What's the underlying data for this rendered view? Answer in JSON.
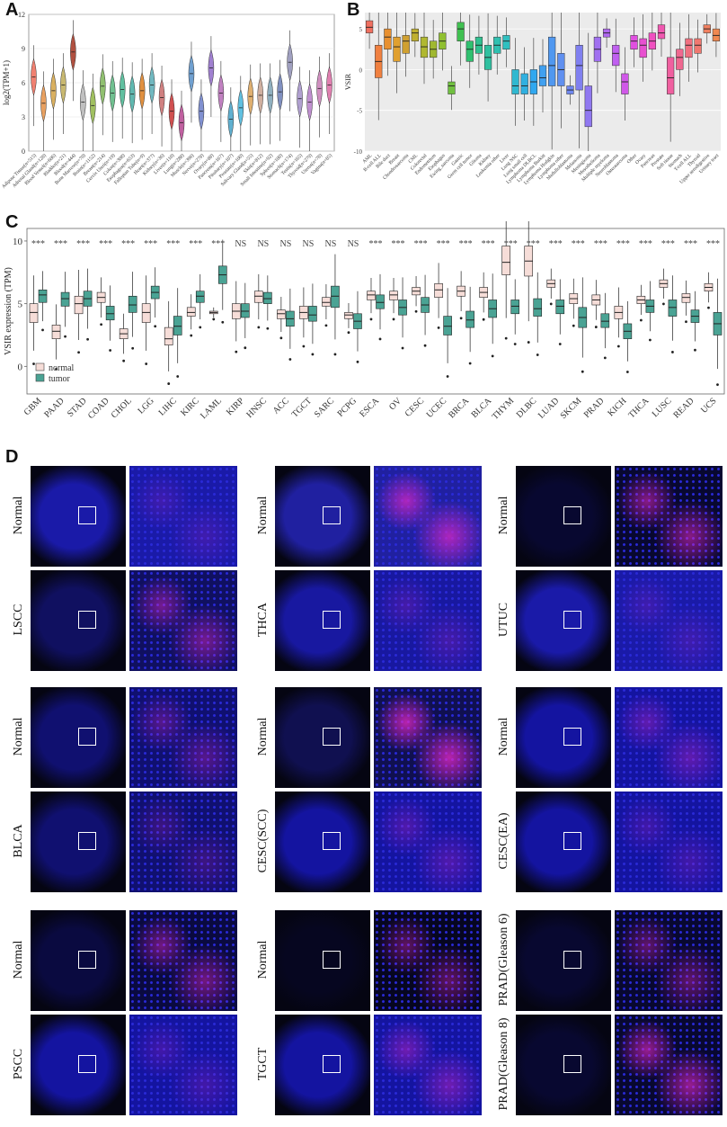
{
  "panels": {
    "a": "A",
    "b": "B",
    "c": "C",
    "d": "D"
  },
  "chart_a": {
    "type": "violin",
    "ylabel": "log2(TPM+1)",
    "ylim": [
      0,
      12
    ],
    "yticks": [
      0,
      3,
      6,
      9,
      12
    ],
    "categories": [
      "Adipose Tissue(n=515)",
      "Adrenal Gland(n=128)",
      "Blood Vessel(n=606)",
      "Bladder(n=21)",
      "Blood(n=444)",
      "Bone Marrow(n=70)",
      "Brain(n=1152)",
      "Breast(n=214)",
      "Cervix Uteri(n=19)",
      "Colon(n=308)",
      "Esophagus(n=653)",
      "Fallopian Tube(n=9)",
      "Heart(n=377)",
      "Kidney(n=36)",
      "Liver(n=110)",
      "Lung(n=288)",
      "Muscle(n=396)",
      "Nerve(n=278)",
      "Ovary(n=88)",
      "Pancreas(n=167)",
      "Pituitary(n=107)",
      "Prostate(n=100)",
      "Salivary Gland(n=55)",
      "Skin(n=812)",
      "Small Intestine(n=92)",
      "Spleen(n=100)",
      "Stomach(n=174)",
      "Testis(n=165)",
      "Thyroid(n=279)",
      "Uterus(n=78)",
      "Vagina(n=85)"
    ],
    "medians": [
      6.5,
      4.2,
      5.3,
      5.8,
      8.7,
      4.3,
      4.0,
      5.7,
      5.1,
      5.4,
      5.0,
      5.3,
      5.8,
      4.7,
      3.5,
      2.5,
      6.8,
      3.5,
      7.3,
      5.1,
      2.8,
      3.8,
      4.8,
      4.9,
      4.9,
      5.2,
      7.8,
      4.6,
      4.3,
      5.5,
      5.8
    ],
    "colors": [
      "#f08070",
      "#e8a060",
      "#d9b060",
      "#c8b870",
      "#b05040",
      "#c0c0c0",
      "#a0c060",
      "#90c070",
      "#70c090",
      "#60c0a0",
      "#60b8b0",
      "#e09040",
      "#70b8c0",
      "#d08080",
      "#d05050",
      "#c060a0",
      "#70a0d0",
      "#8090d0",
      "#a080d0",
      "#c080c0",
      "#60b0d0",
      "#60c0e0",
      "#e0b070",
      "#d0b0a0",
      "#90b0c0",
      "#8090c0",
      "#a0a0c0",
      "#b0a0d0",
      "#c090d0",
      "#d090c0",
      "#e080b0"
    ]
  },
  "chart_b": {
    "type": "box",
    "ylabel": "VSIR",
    "ylim": [
      -10,
      7
    ],
    "yticks": [
      -10,
      -5,
      0,
      5
    ],
    "categories": [
      "AML",
      "B-cell ALL",
      "Bile duct",
      "Breast",
      "Chondrosarcoma",
      "CML",
      "Colorectal",
      "Endometrium",
      "Esophagus",
      "Ewing_sarcoma",
      "Gastric",
      "Germ cell tumor",
      "Glioma",
      "Kidney",
      "Leukemia other",
      "Liver",
      "Lung NSC",
      "Lung small cell",
      "Lymphoma DLBCL",
      "Lymphoma Burkitt",
      "Lymphoma Hodgkin",
      "Lymphoma other",
      "Medulloblastoma",
      "Melanoma",
      "Meningioma",
      "Mesothelioma",
      "Multiple myeloma",
      "Neuroblastoma",
      "Osteosarcoma",
      "Other",
      "Ovary",
      "Pancreas",
      "Prostate",
      "Soft tissue",
      "Stomach",
      "T-cell ALL",
      "Thyroid",
      "Upper aerodigestive",
      "Urinary tract"
    ],
    "boxes": [
      [
        5.2,
        4.5,
        6.0
      ],
      [
        1.0,
        -1.0,
        3.0
      ],
      [
        4.0,
        2.5,
        5.0
      ],
      [
        2.8,
        1.0,
        4.0
      ],
      [
        3.5,
        2.0,
        4.2
      ],
      [
        4.5,
        3.5,
        5.0
      ],
      [
        2.8,
        1.5,
        4.0
      ],
      [
        2.5,
        1.5,
        3.5
      ],
      [
        3.5,
        2.5,
        4.5
      ],
      [
        -2.0,
        -3.0,
        -1.5
      ],
      [
        5.0,
        3.5,
        5.8
      ],
      [
        2.5,
        1.0,
        3.5
      ],
      [
        3.0,
        2.0,
        4.0
      ],
      [
        1.5,
        0.0,
        3.0
      ],
      [
        3.0,
        2.0,
        4.0
      ],
      [
        3.5,
        2.5,
        4.2
      ],
      [
        -2.0,
        -3.0,
        0.0
      ],
      [
        -2.0,
        -3.0,
        -0.5
      ],
      [
        -1.5,
        -3.0,
        0.0
      ],
      [
        -1.0,
        -2.0,
        0.5
      ],
      [
        0.5,
        -2.0,
        4.0
      ],
      [
        0.0,
        -2.0,
        2.0
      ],
      [
        -2.5,
        -3.0,
        -2.0
      ],
      [
        0.5,
        -2.5,
        3.0
      ],
      [
        -5.0,
        -7.0,
        -2.0
      ],
      [
        2.5,
        1.0,
        4.0
      ],
      [
        4.5,
        4.0,
        5.0
      ],
      [
        2.0,
        0.5,
        3.0
      ],
      [
        -1.5,
        -3.0,
        -0.5
      ],
      [
        3.5,
        2.5,
        4.2
      ],
      [
        3.0,
        1.5,
        3.8
      ],
      [
        3.5,
        2.5,
        4.5
      ],
      [
        4.5,
        3.8,
        5.5
      ],
      [
        -1.0,
        -3.0,
        1.5
      ],
      [
        1.5,
        0.0,
        2.5
      ],
      [
        3.0,
        1.5,
        3.8
      ],
      [
        3.0,
        2.0,
        3.8
      ],
      [
        5.0,
        4.5,
        5.5
      ],
      [
        4.2,
        3.5,
        5.0
      ]
    ],
    "colors": [
      "#f07060",
      "#f08040",
      "#e89030",
      "#e0a030",
      "#d0a030",
      "#c0b030",
      "#b0b830",
      "#a0b830",
      "#90c030",
      "#70c040",
      "#40c050",
      "#30c070",
      "#30c090",
      "#30c0a0",
      "#30c0b0",
      "#30c0c0",
      "#30b8d0",
      "#30b0e0",
      "#30a8f0",
      "#40a0f0",
      "#5098f0",
      "#6090f0",
      "#7088f0",
      "#8080f0",
      "#9078f0",
      "#a070f0",
      "#b068f0",
      "#c060f0",
      "#d058e8",
      "#e050e0",
      "#e850d0",
      "#f050c0",
      "#f058b0",
      "#f060a0",
      "#f06890",
      "#f07080",
      "#f07870",
      "#f08060",
      "#f08850"
    ]
  },
  "chart_c": {
    "type": "box",
    "ylabel": "VSIR expression (TPM)",
    "ylim": [
      -2.2,
      11
    ],
    "yticks": [
      0,
      5,
      10
    ],
    "legend": [
      "normal",
      "tumor"
    ],
    "legend_position": "bottom-left",
    "colors": {
      "normal": "#f6ddd8",
      "tumor": "#4aa394"
    },
    "categories": [
      "GBM",
      "PAAD",
      "STAD",
      "COAD",
      "CHOL",
      "LGG",
      "LIHC",
      "KIRC",
      "LAML",
      "KIRP",
      "HNSC",
      "ACC",
      "TGCT",
      "SARC",
      "PCPG",
      "ESCA",
      "OV",
      "CESC",
      "UCEC",
      "BRCA",
      "BLCA",
      "THYM",
      "DLBC",
      "LUAD",
      "SKCM",
      "PRAD",
      "KICH",
      "THCA",
      "LUSC",
      "READ",
      "UCS"
    ],
    "significance": [
      "***",
      "***",
      "***",
      "***",
      "***",
      "***",
      "***",
      "***",
      "***",
      "NS",
      "NS",
      "NS",
      "NS",
      "NS",
      "NS",
      "***",
      "***",
      "***",
      "***",
      "***",
      "***",
      "***",
      "***",
      "***",
      "***",
      "***",
      "***",
      "***",
      "***",
      "***",
      "***"
    ],
    "normal": [
      [
        4.3,
        3.5,
        5.0
      ],
      [
        2.8,
        2.2,
        3.3
      ],
      [
        5.0,
        4.2,
        5.6
      ],
      [
        5.5,
        5.1,
        5.9
      ],
      [
        2.6,
        2.2,
        3.0
      ],
      [
        4.3,
        3.5,
        5.0
      ],
      [
        2.2,
        1.7,
        3.1
      ],
      [
        4.3,
        4.0,
        4.7
      ],
      [
        4.3,
        4.2,
        4.4
      ],
      [
        4.4,
        3.8,
        5.0
      ],
      [
        5.6,
        5.1,
        6.0
      ],
      [
        4.2,
        3.8,
        4.5
      ],
      [
        4.3,
        3.8,
        4.8
      ],
      [
        5.1,
        4.8,
        5.5
      ],
      [
        4.1,
        3.8,
        4.3
      ],
      [
        5.7,
        5.3,
        6.0
      ],
      [
        5.7,
        5.3,
        6.0
      ],
      [
        6.0,
        5.7,
        6.3
      ],
      [
        6.1,
        5.5,
        6.6
      ],
      [
        6.0,
        5.6,
        6.4
      ],
      [
        5.9,
        5.5,
        6.3
      ],
      [
        8.3,
        7.3,
        9.6
      ],
      [
        8.4,
        7.2,
        9.6
      ],
      [
        6.6,
        6.3,
        6.9
      ],
      [
        5.4,
        5.0,
        5.8
      ],
      [
        5.3,
        4.9,
        5.7
      ],
      [
        4.3,
        3.8,
        4.8
      ],
      [
        5.3,
        5.0,
        5.6
      ],
      [
        6.6,
        6.3,
        6.9
      ],
      [
        5.5,
        5.1,
        5.8
      ],
      [
        6.3,
        6.0,
        6.6
      ]
    ],
    "tumor": [
      [
        5.7,
        5.1,
        6.1
      ],
      [
        5.4,
        4.8,
        5.9
      ],
      [
        5.4,
        4.8,
        6.0
      ],
      [
        4.2,
        3.7,
        4.8
      ],
      [
        4.9,
        4.3,
        5.6
      ],
      [
        5.9,
        5.4,
        6.4
      ],
      [
        3.2,
        2.5,
        4.0
      ],
      [
        5.6,
        5.1,
        6.0
      ],
      [
        7.3,
        6.6,
        8.0
      ],
      [
        4.4,
        3.9,
        5.0
      ],
      [
        5.4,
        5.0,
        5.9
      ],
      [
        3.8,
        3.2,
        4.4
      ],
      [
        4.1,
        3.6,
        4.8
      ],
      [
        5.6,
        4.7,
        6.4
      ],
      [
        3.6,
        3.0,
        4.2
      ],
      [
        5.1,
        4.6,
        5.7
      ],
      [
        4.7,
        4.1,
        5.3
      ],
      [
        4.9,
        4.3,
        5.5
      ],
      [
        3.2,
        2.5,
        4.0
      ],
      [
        3.7,
        3.1,
        4.4
      ],
      [
        4.6,
        3.9,
        5.3
      ],
      [
        4.8,
        4.2,
        5.3
      ],
      [
        4.6,
        4.0,
        5.4
      ],
      [
        4.8,
        4.2,
        5.3
      ],
      [
        3.9,
        3.1,
        4.7
      ],
      [
        3.6,
        3.1,
        4.2
      ],
      [
        2.8,
        2.2,
        3.4
      ],
      [
        4.8,
        4.3,
        5.3
      ],
      [
        4.7,
        4.0,
        5.3
      ],
      [
        4.0,
        3.5,
        4.5
      ],
      [
        3.4,
        2.5,
        4.3
      ]
    ]
  },
  "panel_d": {
    "groups": [
      {
        "top": "Normal",
        "bottom": "LSCC",
        "top_color": "#1a1aa8",
        "bottom_color": "#101060",
        "top_signal": 0.05,
        "bottom_signal": 0.45
      },
      {
        "top": "Normal",
        "bottom": "THCA",
        "top_color": "#2020a0",
        "bottom_color": "#1818a0",
        "top_signal": 0.8,
        "bottom_signal": 0.1
      },
      {
        "top": "Normal",
        "bottom": "UTUC",
        "top_color": "#080830",
        "bottom_color": "#1a1aa8",
        "top_signal": 0.6,
        "bottom_signal": 0.05
      },
      {
        "top": "Normal",
        "bottom": "BLCA",
        "top_color": "#101070",
        "bottom_color": "#101070",
        "top_signal": 0.25,
        "bottom_signal": 0.08
      },
      {
        "top": "Normal",
        "bottom": "CESC(SCC)",
        "top_color": "#101050",
        "bottom_color": "#1414a0",
        "top_signal": 0.9,
        "bottom_signal": 0.2
      },
      {
        "top": "Normal",
        "bottom": "CESC(EA)",
        "top_color": "#1414a0",
        "bottom_color": "#1414a0",
        "top_signal": 0.3,
        "bottom_signal": 0.1
      },
      {
        "top": "Normal",
        "bottom": "PSCC",
        "top_color": "#0a0a40",
        "bottom_color": "#1414a0",
        "top_signal": 0.45,
        "bottom_signal": 0.1
      },
      {
        "top": "Normal",
        "bottom": "TGCT",
        "top_color": "#060620",
        "bottom_color": "#1414a0",
        "top_signal": 0.35,
        "bottom_signal": 0.4
      },
      {
        "top": "PRAD(Gleason 6)",
        "bottom": "PRAD(Gleason 8)",
        "top_color": "#080830",
        "bottom_color": "#080830",
        "top_signal": 0.35,
        "bottom_signal": 0.7
      }
    ]
  }
}
